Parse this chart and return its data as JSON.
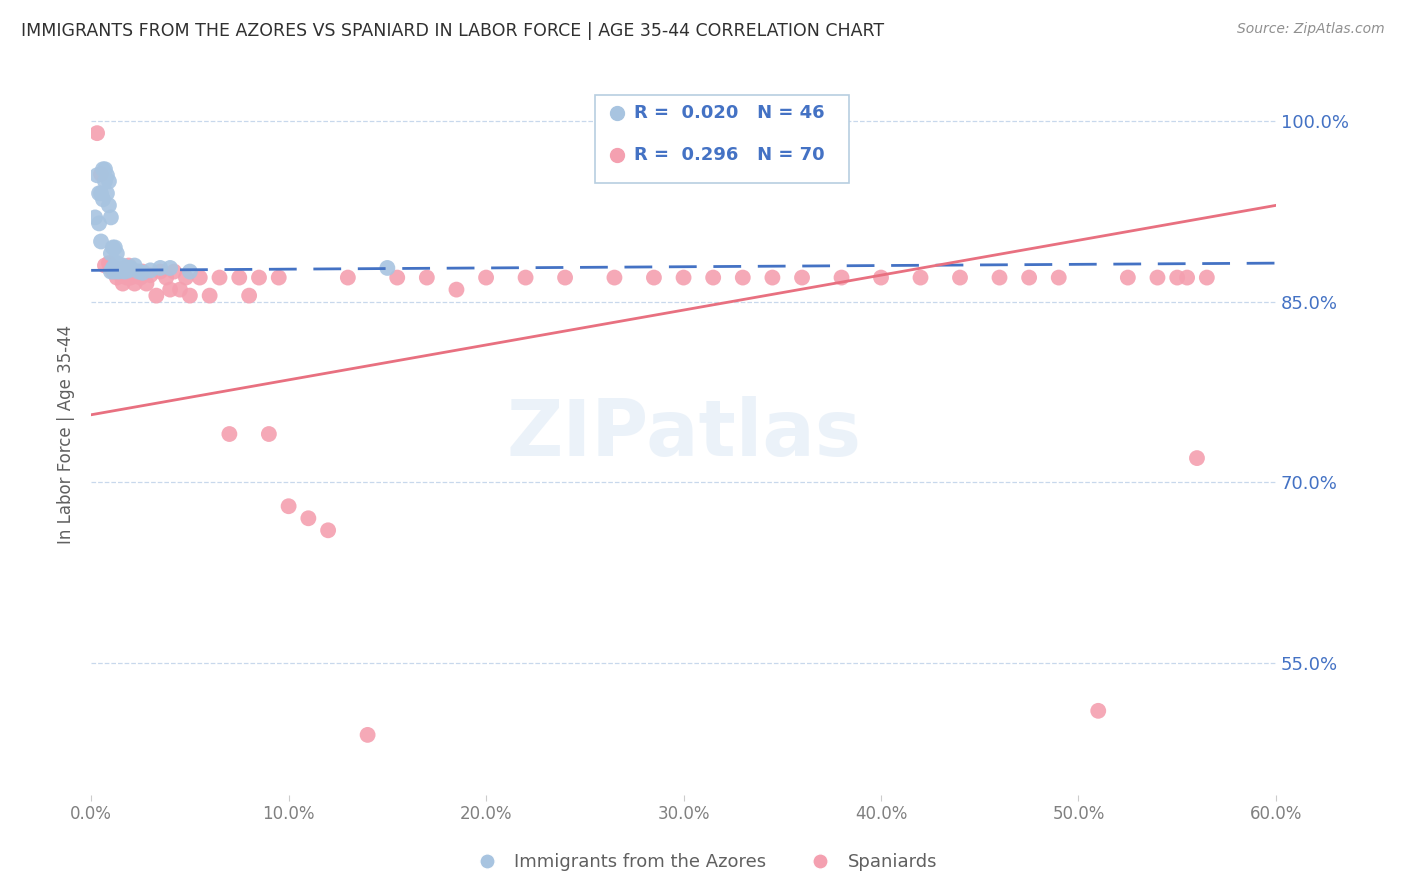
{
  "title": "IMMIGRANTS FROM THE AZORES VS SPANIARD IN LABOR FORCE | AGE 35-44 CORRELATION CHART",
  "source": "Source: ZipAtlas.com",
  "ylabel": "In Labor Force | Age 35-44",
  "xlim": [
    0.0,
    0.6
  ],
  "ylim": [
    0.44,
    1.04
  ],
  "yticks_right": [
    0.55,
    0.7,
    0.85,
    1.0
  ],
  "ytick_labels_right": [
    "55.0%",
    "70.0%",
    "85.0%",
    "100.0%"
  ],
  "xticks": [
    0.0,
    0.1,
    0.2,
    0.3,
    0.4,
    0.5,
    0.6
  ],
  "xtick_labels": [
    "0.0%",
    "10.0%",
    "20.0%",
    "30.0%",
    "40.0%",
    "50.0%",
    "60.0%"
  ],
  "blue_R": 0.02,
  "blue_N": 46,
  "pink_R": 0.296,
  "pink_N": 70,
  "blue_color": "#a8c4e0",
  "pink_color": "#f4a0b0",
  "blue_line_color": "#4472c4",
  "pink_line_color": "#e87080",
  "legend_label_blue": "Immigrants from the Azores",
  "legend_label_pink": "Spaniards",
  "blue_x": [
    0.002,
    0.003,
    0.004,
    0.004,
    0.005,
    0.005,
    0.006,
    0.006,
    0.007,
    0.007,
    0.008,
    0.008,
    0.009,
    0.009,
    0.01,
    0.01,
    0.01,
    0.011,
    0.011,
    0.012,
    0.012,
    0.012,
    0.013,
    0.013,
    0.013,
    0.014,
    0.014,
    0.015,
    0.015,
    0.016,
    0.016,
    0.017,
    0.017,
    0.018,
    0.018,
    0.019,
    0.019,
    0.02,
    0.022,
    0.024,
    0.026,
    0.03,
    0.035,
    0.04,
    0.05,
    0.15
  ],
  "blue_y": [
    0.92,
    0.955,
    0.94,
    0.915,
    0.94,
    0.9,
    0.96,
    0.935,
    0.96,
    0.95,
    0.94,
    0.955,
    0.95,
    0.93,
    0.875,
    0.89,
    0.92,
    0.878,
    0.895,
    0.875,
    0.88,
    0.895,
    0.878,
    0.882,
    0.89,
    0.878,
    0.875,
    0.876,
    0.88,
    0.877,
    0.88,
    0.878,
    0.875,
    0.876,
    0.878,
    0.876,
    0.878,
    0.878,
    0.88,
    0.875,
    0.874,
    0.876,
    0.878,
    0.878,
    0.875,
    0.878
  ],
  "pink_x": [
    0.003,
    0.005,
    0.007,
    0.009,
    0.01,
    0.011,
    0.012,
    0.013,
    0.014,
    0.015,
    0.016,
    0.017,
    0.018,
    0.019,
    0.02,
    0.022,
    0.023,
    0.025,
    0.026,
    0.028,
    0.03,
    0.033,
    0.035,
    0.038,
    0.04,
    0.042,
    0.045,
    0.048,
    0.05,
    0.055,
    0.06,
    0.065,
    0.07,
    0.075,
    0.08,
    0.085,
    0.09,
    0.095,
    0.1,
    0.11,
    0.12,
    0.13,
    0.14,
    0.155,
    0.17,
    0.185,
    0.2,
    0.22,
    0.24,
    0.265,
    0.285,
    0.3,
    0.315,
    0.33,
    0.345,
    0.36,
    0.38,
    0.4,
    0.42,
    0.44,
    0.46,
    0.475,
    0.49,
    0.51,
    0.525,
    0.54,
    0.55,
    0.555,
    0.56,
    0.565
  ],
  "pink_y": [
    0.99,
    0.956,
    0.88,
    0.882,
    0.88,
    0.875,
    0.878,
    0.87,
    0.875,
    0.872,
    0.865,
    0.878,
    0.87,
    0.88,
    0.87,
    0.865,
    0.875,
    0.87,
    0.875,
    0.865,
    0.872,
    0.855,
    0.875,
    0.87,
    0.86,
    0.875,
    0.86,
    0.87,
    0.855,
    0.87,
    0.855,
    0.87,
    0.74,
    0.87,
    0.855,
    0.87,
    0.74,
    0.87,
    0.68,
    0.67,
    0.66,
    0.87,
    0.49,
    0.87,
    0.87,
    0.86,
    0.87,
    0.87,
    0.87,
    0.87,
    0.87,
    0.87,
    0.87,
    0.87,
    0.87,
    0.87,
    0.87,
    0.87,
    0.87,
    0.87,
    0.87,
    0.87,
    0.87,
    0.51,
    0.87,
    0.87,
    0.87,
    0.87,
    0.72,
    0.87
  ]
}
